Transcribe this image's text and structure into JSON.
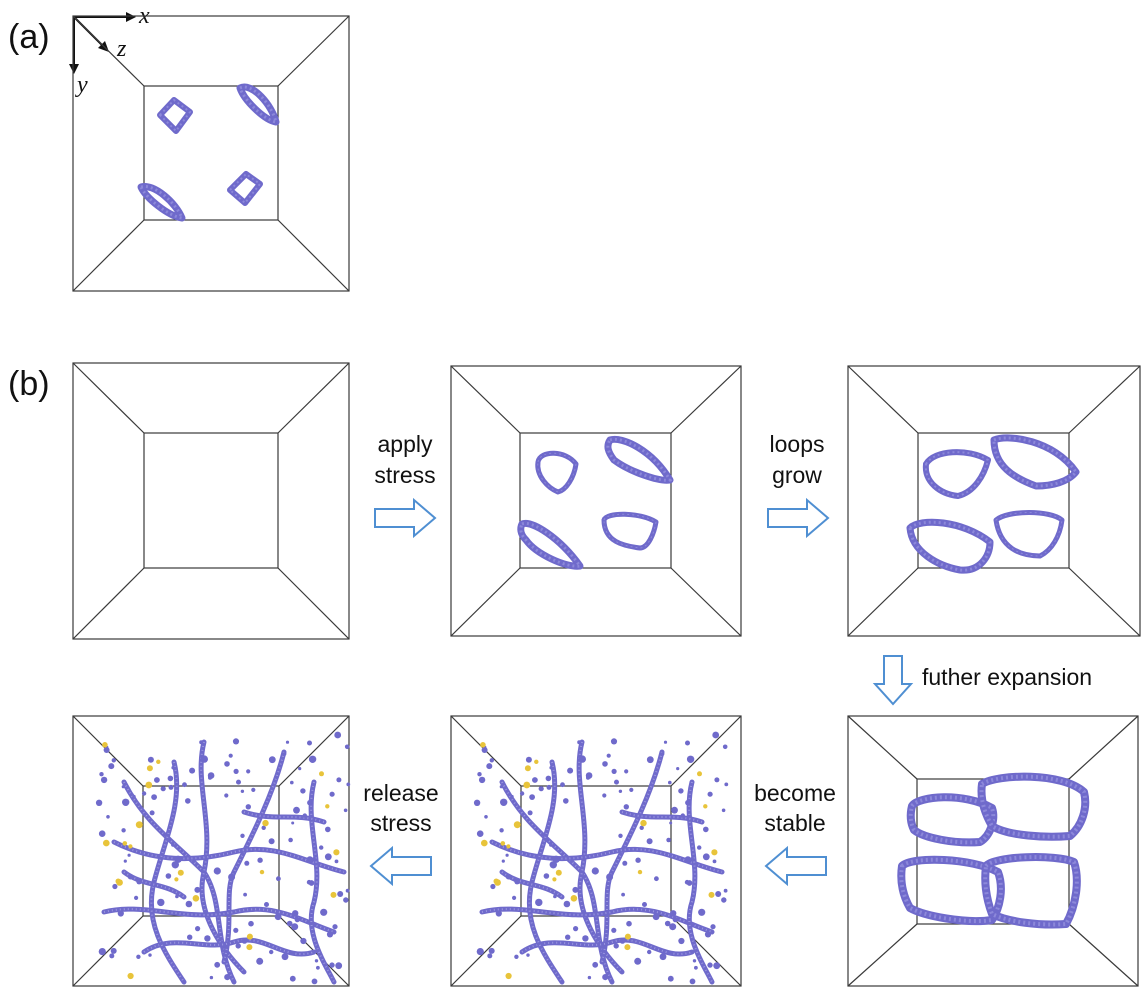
{
  "labels": {
    "panel_a": "(a)",
    "panel_b": "(b)"
  },
  "axes": {
    "x": "x",
    "y": "y",
    "z": "z"
  },
  "steps": {
    "apply_stress_1": "apply",
    "apply_stress_2": "stress",
    "loops_grow_1": "loops",
    "loops_grow_2": "grow",
    "further_expansion": "futher expansion",
    "become_stable_1": "become",
    "become_stable_2": "stable",
    "release_stress_1": "release",
    "release_stress_2": "stress"
  },
  "colors": {
    "dislocation": "#6f6acb",
    "defect_atom": "#e8c43a",
    "arrow_outline": "#4f8fd2",
    "box_edge": "#3a3a3a"
  }
}
